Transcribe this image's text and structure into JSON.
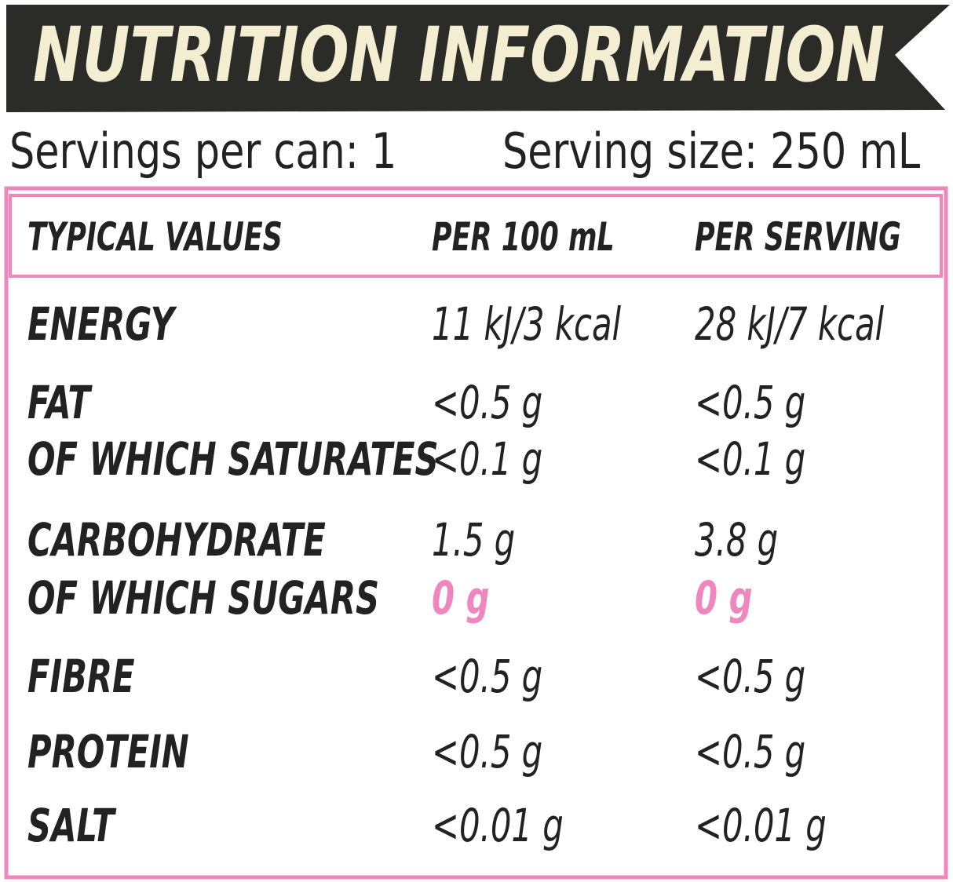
{
  "header": {
    "title": "NUTRITION INFORMATION",
    "servings": "Servings per can: 1",
    "serving_size": "Serving size: 250 mL"
  },
  "table": {
    "columns": [
      "TYPICAL VALUES",
      "PER 100 mL",
      "PER SERVING"
    ],
    "rows": [
      [
        "ENERGY",
        "11 kJ/3 kcal",
        "28 kJ/7 kcal"
      ],
      [
        "FAT",
        "<0.5 g",
        "<0.5 g"
      ],
      [
        "OF WHICH SATURATES",
        "<0.1 g",
        "<0.1 g"
      ],
      [
        "CARBOHYDRATE",
        "1.5 g",
        "3.8 g"
      ],
      [
        "OF WHICH SUGARS",
        "0 g",
        "0 g"
      ],
      [
        "FIBRE",
        "<0.5 g",
        "<0.5 g"
      ],
      [
        "PROTEIN",
        "<0.5 g",
        "<0.5 g"
      ],
      [
        "SALT",
        "<0.01 g",
        "<0.01 g"
      ]
    ]
  }
}
